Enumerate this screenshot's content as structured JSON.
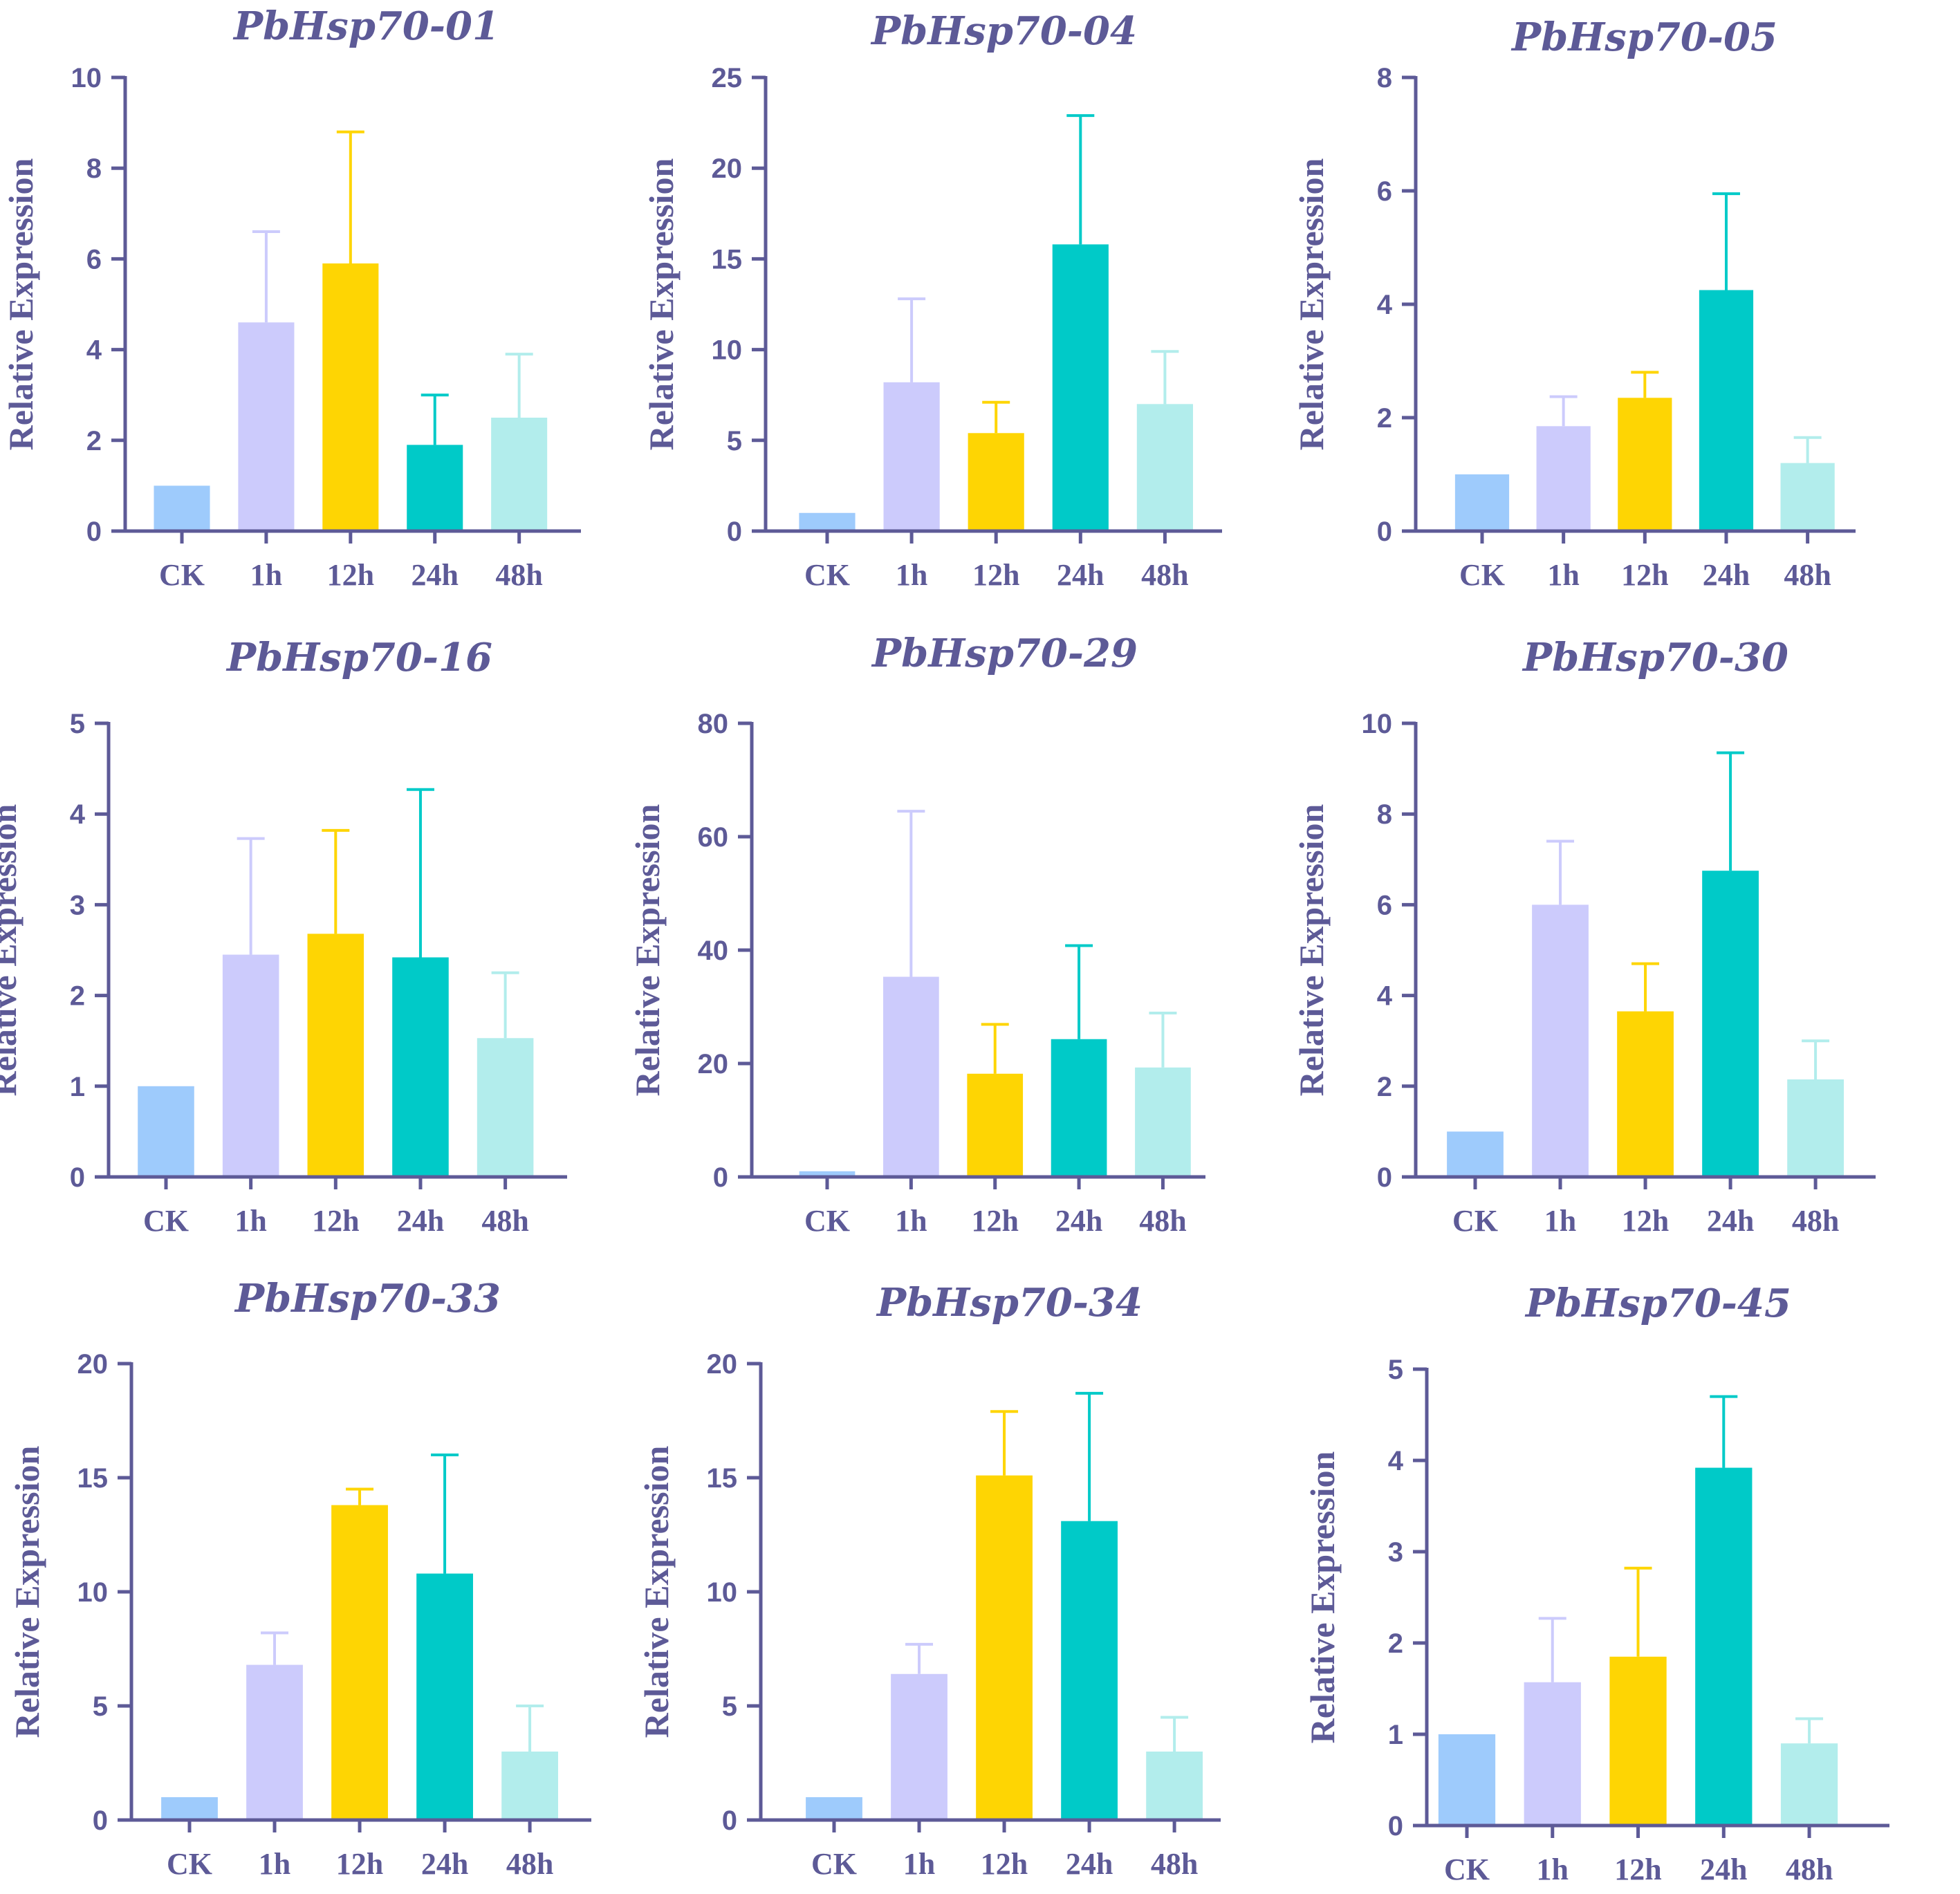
{
  "colors": {
    "axis": "#5d5a97",
    "title": "#5d5a97",
    "bars": [
      "#9ecbfc",
      "#cccbfc",
      "#fed503",
      "#00cac8",
      "#b2edec"
    ]
  },
  "chart_data": [
    {
      "type": "bar",
      "title": "PbHsp70-01",
      "ylabel": "Relative Expression",
      "xlabel": "",
      "categories": [
        "CK",
        "1h",
        "12h",
        "24h",
        "48h"
      ],
      "values": [
        1.0,
        4.6,
        5.9,
        1.9,
        2.5
      ],
      "errors": [
        0,
        2.0,
        2.9,
        1.1,
        1.4
      ],
      "ylim": [
        0,
        10
      ],
      "yticks": [
        0,
        2,
        4,
        6,
        8,
        10
      ]
    },
    {
      "type": "bar",
      "title": "PbHsp70-04",
      "ylabel": "Relative Expression",
      "xlabel": "",
      "categories": [
        "CK",
        "1h",
        "12h",
        "24h",
        "48h"
      ],
      "values": [
        1.0,
        8.2,
        5.4,
        15.8,
        7.0
      ],
      "errors": [
        0,
        4.6,
        1.7,
        7.1,
        2.9
      ],
      "ylim": [
        0,
        25
      ],
      "yticks": [
        0,
        5,
        10,
        15,
        20,
        25
      ]
    },
    {
      "type": "bar",
      "title": "PbHsp70-05",
      "ylabel": "Relative Expression",
      "xlabel": "",
      "categories": [
        "CK",
        "1h",
        "12h",
        "24h",
        "48h"
      ],
      "values": [
        1.0,
        1.85,
        2.35,
        4.25,
        1.2
      ],
      "errors": [
        0,
        0.52,
        0.45,
        1.7,
        0.45
      ],
      "ylim": [
        0,
        8
      ],
      "yticks": [
        0,
        2,
        4,
        6,
        8
      ]
    },
    {
      "type": "bar",
      "title": "PbHsp70-16",
      "ylabel": "Relative Expression",
      "xlabel": "",
      "categories": [
        "CK",
        "1h",
        "12h",
        "24h",
        "48h"
      ],
      "values": [
        1.0,
        2.45,
        2.68,
        2.42,
        1.53
      ],
      "errors": [
        0,
        1.28,
        1.14,
        1.85,
        0.72
      ],
      "ylim": [
        0,
        5
      ],
      "yticks": [
        0,
        1,
        2,
        3,
        4,
        5
      ]
    },
    {
      "type": "bar",
      "title": "PbHsp70-29",
      "ylabel": "Relative Expression",
      "xlabel": "",
      "categories": [
        "CK",
        "1h",
        "12h",
        "24h",
        "48h"
      ],
      "values": [
        1.0,
        35.3,
        18.2,
        24.3,
        19.3
      ],
      "errors": [
        0,
        29.2,
        8.7,
        16.5,
        9.6
      ],
      "ylim": [
        0,
        80
      ],
      "yticks": [
        0,
        20,
        40,
        60,
        80
      ]
    },
    {
      "type": "bar",
      "title": "PbHsp70-30",
      "ylabel": "Relative Expression",
      "xlabel": "",
      "categories": [
        "CK",
        "1h",
        "12h",
        "24h",
        "48h"
      ],
      "values": [
        1.0,
        6.0,
        3.65,
        6.75,
        2.15
      ],
      "errors": [
        0,
        1.4,
        1.05,
        2.6,
        0.85
      ],
      "ylim": [
        0,
        10
      ],
      "yticks": [
        0,
        2,
        4,
        6,
        8,
        10
      ]
    },
    {
      "type": "bar",
      "title": "PbHsp70-33",
      "ylabel": "Relative Expression",
      "xlabel": "",
      "categories": [
        "CK",
        "1h",
        "12h",
        "24h",
        "48h"
      ],
      "values": [
        1.0,
        6.8,
        13.8,
        10.8,
        3.0
      ],
      "errors": [
        0,
        1.4,
        0.7,
        5.2,
        2.0
      ],
      "ylim": [
        0,
        20
      ],
      "yticks": [
        0,
        5,
        10,
        15,
        20
      ]
    },
    {
      "type": "bar",
      "title": "PbHsp70-34",
      "ylabel": "Relative Expression",
      "xlabel": "",
      "categories": [
        "CK",
        "1h",
        "12h",
        "24h",
        "48h"
      ],
      "values": [
        1.0,
        6.4,
        15.1,
        13.1,
        3.0
      ],
      "errors": [
        0,
        1.3,
        2.8,
        5.6,
        1.5
      ],
      "ylim": [
        0,
        20
      ],
      "yticks": [
        0,
        5,
        10,
        15,
        20
      ]
    },
    {
      "type": "bar",
      "title": "PbHsp70-45",
      "ylabel": "Relative Expression",
      "xlabel": "",
      "categories": [
        "CK",
        "1h",
        "12h",
        "24h",
        "48h"
      ],
      "values": [
        1.0,
        1.57,
        1.85,
        3.92,
        0.9
      ],
      "errors": [
        0,
        0.7,
        0.97,
        0.78,
        0.27
      ],
      "ylim": [
        0,
        5
      ],
      "yticks": [
        0,
        1,
        2,
        3,
        4,
        5
      ]
    }
  ]
}
